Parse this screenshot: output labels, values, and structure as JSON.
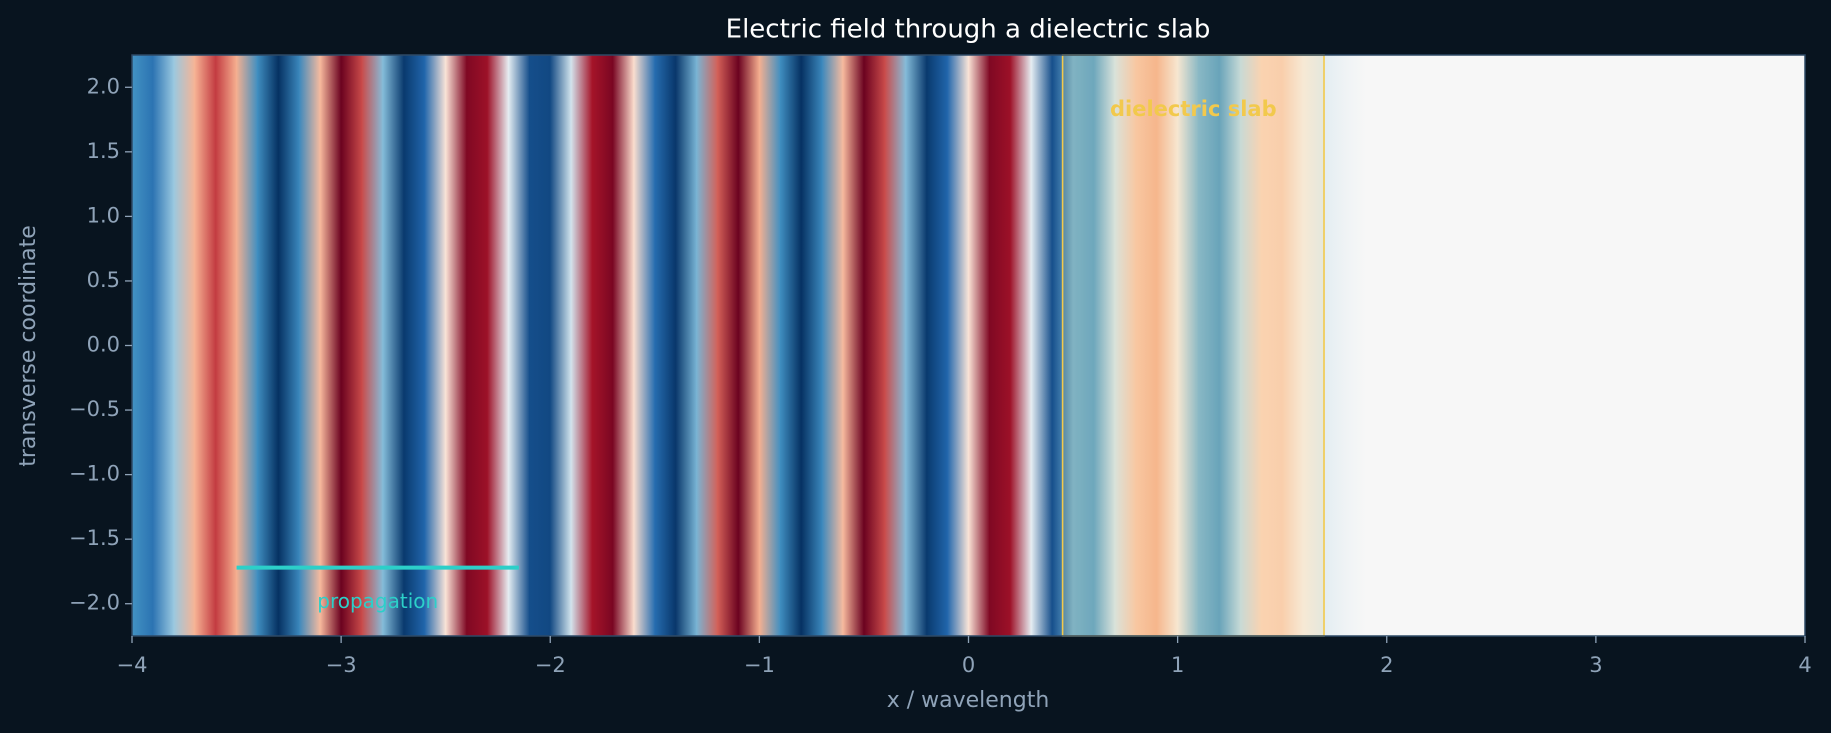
{
  "chart_data": {
    "type": "heatmap",
    "title": "Electric field through a dielectric slab",
    "x_label": "x / wavelength",
    "y_label": "transverse coordinate",
    "x": [
      -4.0,
      -3.9,
      -3.8,
      -3.7,
      -3.6,
      -3.5,
      -3.4,
      -3.3,
      -3.2,
      -3.1,
      -3.0,
      -2.9,
      -2.8,
      -2.7,
      -2.6,
      -2.5,
      -2.4,
      -2.3,
      -2.2,
      -2.1,
      -2.0,
      -1.9,
      -1.8,
      -1.7,
      -1.6,
      -1.5,
      -1.4,
      -1.3,
      -1.2,
      -1.1,
      -1.0,
      -0.9,
      -0.8,
      -0.7,
      -0.6,
      -0.5,
      -0.4,
      -0.3,
      -0.2,
      -0.1,
      0.0,
      0.1,
      0.2,
      0.3,
      0.4,
      0.5,
      0.6,
      0.7,
      0.8,
      0.9,
      1.0,
      1.1,
      1.2,
      1.3,
      1.4,
      1.5,
      1.6,
      1.7,
      1.8,
      1.9,
      2.0,
      2.1,
      2.2,
      2.3,
      2.4,
      2.5,
      2.6,
      2.7,
      2.8,
      2.9,
      3.0,
      3.1,
      3.2,
      3.3,
      3.4,
      3.5,
      3.6,
      3.7,
      3.8,
      3.9,
      4.0
    ],
    "values": [
      -0.5,
      -0.68,
      -0.23,
      0.43,
      0.69,
      0.45,
      -0.52,
      -1.0,
      -0.56,
      0.4,
      0.99,
      0.66,
      -0.29,
      -0.96,
      -0.75,
      0.16,
      0.92,
      0.82,
      -0.04,
      -0.86,
      -0.89,
      -0.09,
      0.79,
      0.94,
      0.21,
      -0.71,
      -0.97,
      -0.33,
      0.62,
      0.99,
      0.45,
      -0.52,
      -1.0,
      -0.56,
      0.4,
      0.99,
      0.66,
      -0.29,
      -0.96,
      -0.75,
      0.16,
      0.92,
      0.82,
      -0.04,
      -0.86,
      -0.35,
      -0.42,
      -0.08,
      0.34,
      0.43,
      0.1,
      -0.32,
      -0.44,
      -0.13,
      0.28,
      0.3,
      0.08,
      -0.05,
      -0.02,
      0,
      0,
      0,
      0,
      0,
      0,
      0,
      0,
      0,
      0,
      0,
      0,
      0,
      0,
      0,
      0,
      0,
      0,
      0,
      0,
      0,
      0
    ],
    "clim": [
      -1,
      1
    ],
    "colormap": [
      "#053061",
      "#2166ac",
      "#4393c3",
      "#92c5de",
      "#f7f7f7",
      "#fddbc7",
      "#f4a582",
      "#b2182b",
      "#67001f"
    ],
    "xlim": [
      -4,
      4
    ],
    "ylim": [
      -2.25,
      2.25
    ],
    "xticks": [
      {
        "value": -4,
        "label": "−4"
      },
      {
        "value": -3,
        "label": "−3"
      },
      {
        "value": -2,
        "label": "−2"
      },
      {
        "value": -1,
        "label": "−1"
      },
      0,
      1,
      2,
      3,
      4
    ],
    "yticks": [
      {
        "value": -2,
        "label": "−2.0"
      },
      {
        "value": -1.5,
        "label": "−1.5"
      },
      {
        "value": -1,
        "label": "−1.0"
      },
      {
        "value": -0.5,
        "label": "−0.5"
      },
      {
        "value": 0,
        "label": "0.0"
      },
      0.5,
      {
        "value": 1,
        "label": "1.0"
      },
      1.5,
      {
        "value": 2,
        "label": "2.0"
      }
    ],
    "slab": {
      "label": "dielectric slab",
      "xlim": [
        0.45,
        1.7
      ],
      "color": "#f2c94c"
    },
    "arrow": {
      "label": "propagation",
      "x": [
        -3.5,
        -2.15
      ],
      "y": -1.72,
      "color": "#2ccfc9"
    }
  }
}
